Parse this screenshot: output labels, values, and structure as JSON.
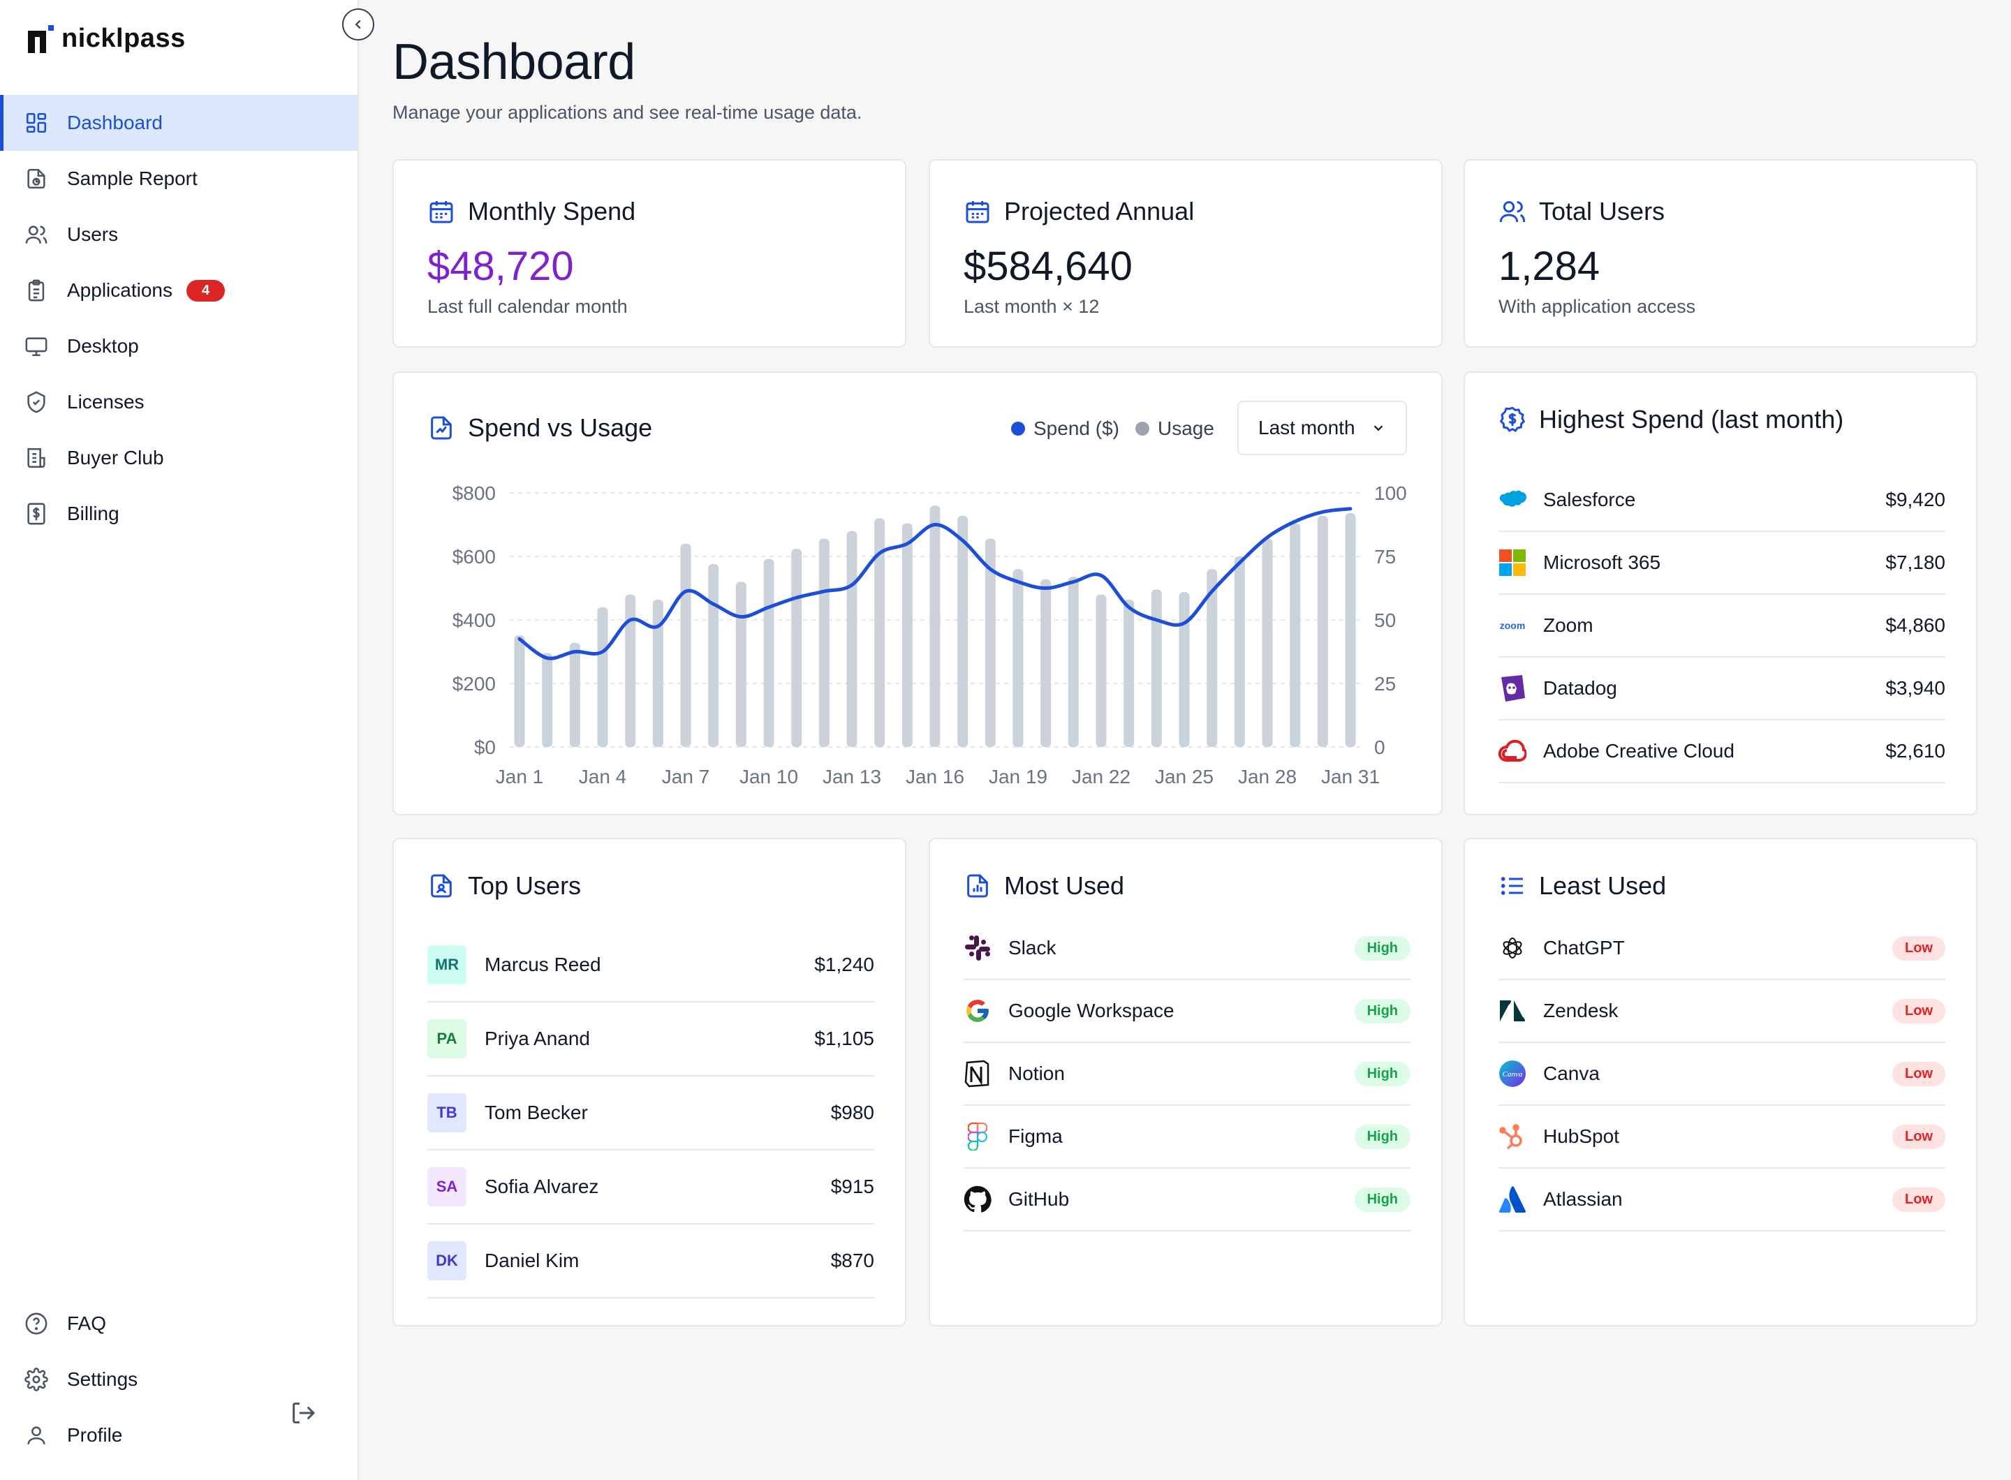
{
  "brand": {
    "name": "nicklpass"
  },
  "sidebar": {
    "items": [
      {
        "label": "Dashboard",
        "icon": "dashboard-icon",
        "active": true
      },
      {
        "label": "Sample Report",
        "icon": "report-icon"
      },
      {
        "label": "Users",
        "icon": "users-icon"
      },
      {
        "label": "Applications",
        "icon": "clipboard-icon",
        "badge": "4"
      },
      {
        "label": "Desktop",
        "icon": "monitor-icon"
      },
      {
        "label": "Licenses",
        "icon": "shield-icon"
      },
      {
        "label": "Buyer Club",
        "icon": "receipt-icon"
      },
      {
        "label": "Billing",
        "icon": "dollar-doc-icon"
      }
    ],
    "bottom": [
      {
        "label": "FAQ",
        "icon": "help-icon"
      },
      {
        "label": "Settings",
        "icon": "gear-icon"
      },
      {
        "label": "Profile",
        "icon": "user-icon"
      }
    ]
  },
  "header": {
    "title": "Dashboard",
    "subtitle": "Manage your applications and see real-time usage data."
  },
  "stats": [
    {
      "title": "Monthly Spend",
      "value": "$48,720",
      "sub": "Last full calendar month",
      "color": "#7e22ce"
    },
    {
      "title": "Projected Annual",
      "value": "$584,640",
      "sub": "Last month × 12",
      "color": "#111827"
    },
    {
      "title": "Total Users",
      "value": "1,284",
      "sub": "With application access",
      "color": "#111827"
    }
  ],
  "spend_chart": {
    "title": "Spend vs Usage",
    "legend_spend": "Spend ($)",
    "legend_usage": "Usage",
    "period": "Last month",
    "colors": {
      "spend": "#1d4ed8",
      "usage": "#cbd2da"
    }
  },
  "chart_data": {
    "type": "bar",
    "x": [
      "Jan 1",
      "Jan 2",
      "Jan 3",
      "Jan 4",
      "Jan 5",
      "Jan 6",
      "Jan 7",
      "Jan 8",
      "Jan 9",
      "Jan 10",
      "Jan 11",
      "Jan 12",
      "Jan 13",
      "Jan 14",
      "Jan 15",
      "Jan 16",
      "Jan 17",
      "Jan 18",
      "Jan 19",
      "Jan 20",
      "Jan 21",
      "Jan 22",
      "Jan 23",
      "Jan 24",
      "Jan 25",
      "Jan 26",
      "Jan 27",
      "Jan 28",
      "Jan 29",
      "Jan 30",
      "Jan 31"
    ],
    "x_tick_labels": [
      "Jan 1",
      "Jan 4",
      "Jan 7",
      "Jan 10",
      "Jan 13",
      "Jan 16",
      "Jan 19",
      "Jan 22",
      "Jan 25",
      "Jan 28",
      "Jan 31"
    ],
    "series": [
      {
        "name": "Usage",
        "type": "bar",
        "axis": "right",
        "values": [
          44,
          37,
          41,
          55,
          60,
          58,
          80,
          72,
          65,
          74,
          78,
          82,
          85,
          90,
          88,
          95,
          91,
          82,
          70,
          66,
          67,
          60,
          58,
          62,
          61,
          70,
          75,
          82,
          88,
          91,
          92
        ]
      },
      {
        "name": "Spend ($)",
        "type": "line",
        "axis": "left",
        "values": [
          340,
          280,
          300,
          300,
          400,
          380,
          490,
          450,
          410,
          440,
          470,
          490,
          510,
          610,
          640,
          700,
          650,
          560,
          520,
          500,
          520,
          540,
          440,
          400,
          390,
          490,
          580,
          660,
          710,
          740,
          750
        ]
      }
    ],
    "ylim_left": [
      0,
      800
    ],
    "yticks_left": [
      "$0",
      "$200",
      "$400",
      "$600",
      "$800"
    ],
    "ylim_right": [
      0,
      100
    ],
    "yticks_right": [
      "0",
      "25",
      "50",
      "75",
      "100"
    ],
    "grid": true
  },
  "highest_spend": {
    "title": "Highest Spend (last month)",
    "items": [
      {
        "name": "Salesforce",
        "amount": "$9,420",
        "icon": "salesforce-icon"
      },
      {
        "name": "Microsoft 365",
        "amount": "$7,180",
        "icon": "microsoft-icon"
      },
      {
        "name": "Zoom",
        "amount": "$4,860",
        "icon": "zoom-icon",
        "logo_text": "zoom"
      },
      {
        "name": "Datadog",
        "amount": "$3,940",
        "icon": "datadog-icon"
      },
      {
        "name": "Adobe Creative Cloud",
        "amount": "$2,610",
        "icon": "adobe-cc-icon"
      }
    ]
  },
  "top_users": {
    "title": "Top Users",
    "items": [
      {
        "initials": "MR",
        "name": "Marcus Reed",
        "amount": "$1,240",
        "bg": "#ccfbf1",
        "fg": "#0f766e"
      },
      {
        "initials": "PA",
        "name": "Priya Anand",
        "amount": "$1,105",
        "bg": "#dcfce7",
        "fg": "#15803d"
      },
      {
        "initials": "TB",
        "name": "Tom Becker",
        "amount": "$980",
        "bg": "#e0e7ff",
        "fg": "#4338ca"
      },
      {
        "initials": "SA",
        "name": "Sofia Alvarez",
        "amount": "$915",
        "bg": "#f3e8ff",
        "fg": "#7e22ce"
      },
      {
        "initials": "DK",
        "name": "Daniel Kim",
        "amount": "$870",
        "bg": "#e0e7ff",
        "fg": "#4338ca"
      }
    ]
  },
  "most_used": {
    "title": "Most Used",
    "items": [
      {
        "name": "Slack",
        "level": "High",
        "icon": "slack-icon"
      },
      {
        "name": "Google Workspace",
        "level": "High",
        "icon": "google-icon"
      },
      {
        "name": "Notion",
        "level": "High",
        "icon": "notion-icon"
      },
      {
        "name": "Figma",
        "level": "High",
        "icon": "figma-icon"
      },
      {
        "name": "GitHub",
        "level": "High",
        "icon": "github-icon"
      }
    ]
  },
  "least_used": {
    "title": "Least Used",
    "items": [
      {
        "name": "ChatGPT",
        "level": "Low",
        "icon": "chatgpt-icon"
      },
      {
        "name": "Zendesk",
        "level": "Low",
        "icon": "zendesk-icon"
      },
      {
        "name": "Canva",
        "level": "Low",
        "icon": "canva-icon"
      },
      {
        "name": "HubSpot",
        "level": "Low",
        "icon": "hubspot-icon"
      },
      {
        "name": "Atlassian",
        "level": "Low",
        "icon": "atlassian-icon"
      }
    ]
  }
}
